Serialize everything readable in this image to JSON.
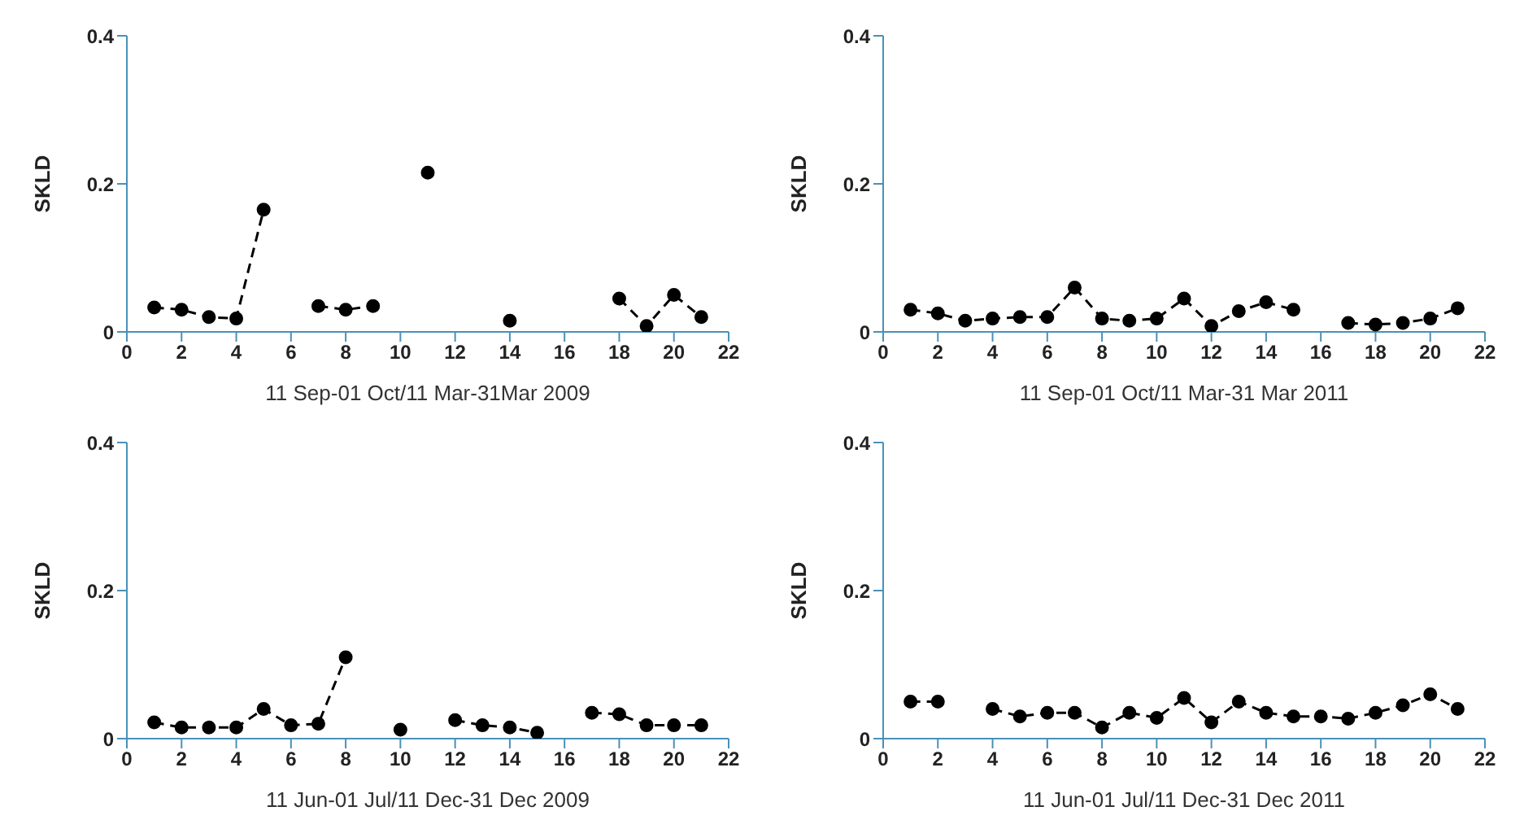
{
  "chart_data": [
    {
      "type": "line",
      "xlabel": "11 Sep-01 Oct/11 Mar-31Mar 2009",
      "ylabel": "SKLD",
      "x": [
        1,
        2,
        3,
        4,
        5,
        6,
        7,
        8,
        9,
        10,
        11,
        12,
        13,
        14,
        15,
        16,
        17,
        18,
        19,
        20,
        21
      ],
      "xlim": [
        0,
        22
      ],
      "xticks": [
        0,
        2,
        4,
        6,
        8,
        10,
        12,
        14,
        16,
        18,
        20,
        22
      ],
      "ylim": [
        0,
        0.4
      ],
      "yticks": [
        0,
        0.2,
        0.4
      ],
      "marker": "circle",
      "line_style": "dashed",
      "series": [
        {
          "color": "#000000",
          "values": [
            0.033,
            0.03,
            0.02,
            0.018,
            0.165,
            null,
            0.035,
            0.03,
            0.035,
            null,
            0.215,
            null,
            null,
            0.015,
            null,
            null,
            null,
            0.045,
            0.008,
            0.05,
            0.02
          ]
        }
      ]
    },
    {
      "type": "line",
      "xlabel": "11 Sep-01 Oct/11 Mar-31 Mar 2011",
      "ylabel": "SKLD",
      "x": [
        1,
        2,
        3,
        4,
        5,
        6,
        7,
        8,
        9,
        10,
        11,
        12,
        13,
        14,
        15,
        16,
        17,
        18,
        19,
        20,
        21
      ],
      "xlim": [
        0,
        22
      ],
      "xticks": [
        0,
        2,
        4,
        6,
        8,
        10,
        12,
        14,
        16,
        18,
        20,
        22
      ],
      "ylim": [
        0,
        0.4
      ],
      "yticks": [
        0,
        0.2,
        0.4
      ],
      "marker": "circle",
      "line_style": "dashed",
      "series": [
        {
          "color": "#000000",
          "values": [
            0.03,
            0.025,
            0.015,
            0.018,
            0.02,
            0.02,
            0.06,
            0.018,
            0.015,
            0.018,
            0.045,
            0.008,
            0.028,
            0.04,
            0.03,
            null,
            0.012,
            0.01,
            0.012,
            0.018,
            0.032
          ]
        }
      ]
    },
    {
      "type": "line",
      "xlabel": "11 Jun-01 Jul/11 Dec-31 Dec 2009",
      "ylabel": "SKLD",
      "x": [
        1,
        2,
        3,
        4,
        5,
        6,
        7,
        8,
        9,
        10,
        11,
        12,
        13,
        14,
        15,
        16,
        17,
        18,
        19,
        20,
        21
      ],
      "xlim": [
        0,
        22
      ],
      "xticks": [
        0,
        2,
        4,
        6,
        8,
        10,
        12,
        14,
        16,
        18,
        20,
        22
      ],
      "ylim": [
        0,
        0.4
      ],
      "yticks": [
        0,
        0.2,
        0.4
      ],
      "marker": "circle",
      "line_style": "dashed",
      "series": [
        {
          "color": "#000000",
          "values": [
            0.022,
            0.015,
            0.015,
            0.015,
            0.04,
            0.018,
            0.02,
            0.11,
            null,
            0.012,
            null,
            0.025,
            0.018,
            0.015,
            0.008,
            null,
            0.035,
            0.033,
            0.018,
            0.018,
            0.018
          ]
        }
      ]
    },
    {
      "type": "line",
      "xlabel": "11 Jun-01 Jul/11 Dec-31 Dec 2011",
      "ylabel": "SKLD",
      "x": [
        1,
        2,
        3,
        4,
        5,
        6,
        7,
        8,
        9,
        10,
        11,
        12,
        13,
        14,
        15,
        16,
        17,
        18,
        19,
        20,
        21
      ],
      "xlim": [
        0,
        22
      ],
      "xticks": [
        0,
        2,
        4,
        6,
        8,
        10,
        12,
        14,
        16,
        18,
        20,
        22
      ],
      "ylim": [
        0,
        0.4
      ],
      "yticks": [
        0,
        0.2,
        0.4
      ],
      "marker": "circle",
      "line_style": "dashed",
      "series": [
        {
          "color": "#000000",
          "values": [
            0.05,
            0.05,
            null,
            0.04,
            0.03,
            0.035,
            0.035,
            0.015,
            0.035,
            0.028,
            0.055,
            0.022,
            0.05,
            0.035,
            0.03,
            0.03,
            0.027,
            0.035,
            0.045,
            0.06,
            0.04
          ]
        }
      ]
    }
  ]
}
